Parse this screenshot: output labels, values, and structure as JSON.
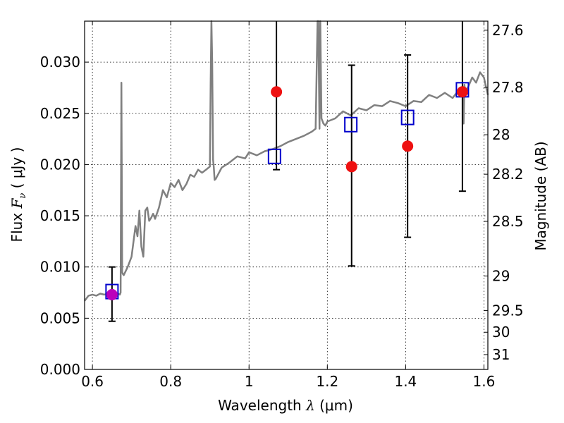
{
  "chart_data": {
    "type": "scatter",
    "xlabel": {
      "prefix": "Wavelength  ",
      "symbol": "λ",
      "unit": " (μm)"
    },
    "ylabel": {
      "prefix": "Flux  ",
      "symbol": "F",
      "sub": "ν",
      "unit": "  ( μJy )"
    },
    "y2label": "Magnitude (AB)",
    "xlim": [
      0.58,
      1.61
    ],
    "ylim": [
      0.0,
      0.034
    ],
    "xticks": [
      {
        "v": 0.6,
        "label": "0.6"
      },
      {
        "v": 0.8,
        "label": "0.8"
      },
      {
        "v": 1.0,
        "label": "1"
      },
      {
        "v": 1.2,
        "label": "1.2"
      },
      {
        "v": 1.4,
        "label": "1.4"
      },
      {
        "v": 1.6,
        "label": "1.6"
      }
    ],
    "yticks": [
      {
        "v": 0.0,
        "label": "0.000"
      },
      {
        "v": 0.005,
        "label": "0.005"
      },
      {
        "v": 0.01,
        "label": "0.010"
      },
      {
        "v": 0.015,
        "label": "0.015"
      },
      {
        "v": 0.02,
        "label": "0.020"
      },
      {
        "v": 0.025,
        "label": "0.025"
      },
      {
        "v": 0.03,
        "label": "0.030"
      }
    ],
    "y2ticks": [
      {
        "mag": 27.6,
        "label": "27.6"
      },
      {
        "mag": 27.8,
        "label": "27.8"
      },
      {
        "mag": 28.0,
        "label": "28"
      },
      {
        "mag": 28.2,
        "label": "28.2"
      },
      {
        "mag": 28.5,
        "label": "28.5"
      },
      {
        "mag": 29.0,
        "label": "29"
      },
      {
        "mag": 29.5,
        "label": "29.5"
      },
      {
        "mag": 30.0,
        "label": "30"
      },
      {
        "mag": 31.0,
        "label": "31"
      }
    ],
    "grid": true,
    "colors": {
      "template": "#808080",
      "model": "#0000cc",
      "observed": "#ee1111",
      "observed_first": "#bb00bb",
      "errorbar": "#000000"
    },
    "series": [
      {
        "kind": "template_spectrum",
        "x": [
          0.58,
          0.59,
          0.6,
          0.61,
          0.62,
          0.63,
          0.64,
          0.65,
          0.66,
          0.665,
          0.67,
          0.672,
          0.674,
          0.676,
          0.678,
          0.68,
          0.69,
          0.7,
          0.71,
          0.715,
          0.72,
          0.725,
          0.73,
          0.735,
          0.74,
          0.745,
          0.75,
          0.755,
          0.76,
          0.77,
          0.78,
          0.79,
          0.8,
          0.81,
          0.82,
          0.83,
          0.84,
          0.85,
          0.86,
          0.87,
          0.88,
          0.89,
          0.9,
          0.902,
          0.904,
          0.906,
          0.908,
          0.91,
          0.912,
          0.915,
          0.93,
          0.95,
          0.97,
          0.99,
          1.0,
          1.02,
          1.04,
          1.06,
          1.08,
          1.1,
          1.12,
          1.14,
          1.16,
          1.17,
          1.175,
          1.177,
          1.18,
          1.182,
          1.185,
          1.19,
          1.195,
          1.2,
          1.22,
          1.24,
          1.26,
          1.28,
          1.3,
          1.32,
          1.34,
          1.36,
          1.38,
          1.4,
          1.42,
          1.44,
          1.46,
          1.48,
          1.5,
          1.52,
          1.53,
          1.54,
          1.545,
          1.548,
          1.55,
          1.552,
          1.555,
          1.56,
          1.57,
          1.58,
          1.59,
          1.6,
          1.61
        ],
        "y": [
          0.0067,
          0.0072,
          0.0073,
          0.0072,
          0.0074,
          0.0073,
          0.0074,
          0.0074,
          0.0073,
          0.0074,
          0.0073,
          0.0075,
          0.028,
          0.0095,
          0.0093,
          0.0092,
          0.01,
          0.011,
          0.014,
          0.013,
          0.0155,
          0.012,
          0.011,
          0.0155,
          0.0158,
          0.0145,
          0.0148,
          0.0152,
          0.0147,
          0.0158,
          0.0175,
          0.0168,
          0.0182,
          0.0178,
          0.0185,
          0.0175,
          0.0181,
          0.019,
          0.0188,
          0.0195,
          0.0192,
          0.0195,
          0.0198,
          0.028,
          0.034,
          0.03,
          0.0205,
          0.0197,
          0.0185,
          0.0186,
          0.0197,
          0.0202,
          0.0208,
          0.0206,
          0.0212,
          0.0209,
          0.0213,
          0.0215,
          0.0218,
          0.0222,
          0.0225,
          0.0228,
          0.0232,
          0.0235,
          0.034,
          0.034,
          0.0235,
          0.034,
          0.0245,
          0.024,
          0.0238,
          0.0242,
          0.0245,
          0.0252,
          0.0248,
          0.0255,
          0.0253,
          0.0258,
          0.0257,
          0.0262,
          0.026,
          0.0257,
          0.0262,
          0.0261,
          0.0268,
          0.0265,
          0.027,
          0.0265,
          0.027,
          0.0268,
          0.0275,
          0.024,
          0.0278,
          0.0272,
          0.0273,
          0.0276,
          0.0285,
          0.028,
          0.029,
          0.0285,
          0.0268
        ]
      },
      {
        "kind": "model_points",
        "x": [
          0.65,
          1.065,
          1.26,
          1.405,
          1.545
        ],
        "y": [
          0.0076,
          0.0208,
          0.0239,
          0.0246,
          0.0273
        ]
      },
      {
        "kind": "observed_points",
        "x": [
          0.65,
          1.07,
          1.262,
          1.405,
          1.545
        ],
        "y": [
          0.0073,
          0.0271,
          0.0198,
          0.0218,
          0.0271
        ],
        "err_low": [
          0.0047,
          0.0195,
          0.0101,
          0.0129,
          0.0174
        ],
        "err_high": [
          0.01,
          0.034,
          0.0297,
          0.0307,
          0.034
        ]
      }
    ]
  }
}
